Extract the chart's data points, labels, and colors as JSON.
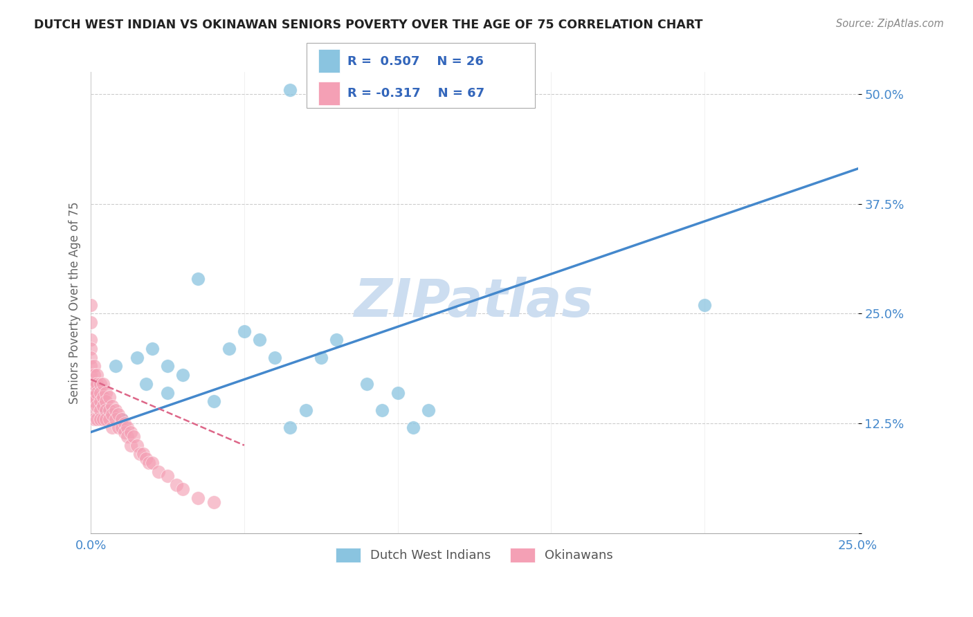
{
  "title": "DUTCH WEST INDIAN VS OKINAWAN SENIORS POVERTY OVER THE AGE OF 75 CORRELATION CHART",
  "source": "Source: ZipAtlas.com",
  "ylabel": "Seniors Poverty Over the Age of 75",
  "xlim": [
    0.0,
    0.25
  ],
  "ylim": [
    0.0,
    0.525
  ],
  "xticks": [
    0.0,
    0.05,
    0.1,
    0.15,
    0.2,
    0.25
  ],
  "yticks": [
    0.0,
    0.125,
    0.25,
    0.375,
    0.5
  ],
  "ytick_labels": [
    "",
    "12.5%",
    "25.0%",
    "37.5%",
    "50.0%"
  ],
  "background_color": "#ffffff",
  "grid_color": "#cccccc",
  "blue_color": "#8ac4e0",
  "pink_color": "#f4a0b5",
  "blue_line_color": "#4488cc",
  "pink_line_color": "#dd6688",
  "watermark": "ZIPatlas",
  "watermark_color": "#ccddf0",
  "legend_r_blue": "R =  0.507",
  "legend_n_blue": "N = 26",
  "legend_r_pink": "R = -0.317",
  "legend_n_pink": "N = 67",
  "legend_label_blue": "Dutch West Indians",
  "legend_label_pink": "Okinawans",
  "blue_x": [
    0.005,
    0.008,
    0.01,
    0.015,
    0.018,
    0.02,
    0.025,
    0.025,
    0.03,
    0.035,
    0.04,
    0.045,
    0.05,
    0.055,
    0.06,
    0.065,
    0.07,
    0.075,
    0.08,
    0.09,
    0.095,
    0.1,
    0.105,
    0.11,
    0.2,
    0.065
  ],
  "blue_y": [
    0.14,
    0.19,
    0.13,
    0.2,
    0.17,
    0.21,
    0.16,
    0.19,
    0.18,
    0.29,
    0.15,
    0.21,
    0.23,
    0.22,
    0.2,
    0.12,
    0.14,
    0.2,
    0.22,
    0.17,
    0.14,
    0.16,
    0.12,
    0.14,
    0.26,
    0.505
  ],
  "pink_x": [
    0.0,
    0.0,
    0.0,
    0.0,
    0.0,
    0.0,
    0.0,
    0.0,
    0.0,
    0.0,
    0.0,
    0.0,
    0.001,
    0.001,
    0.001,
    0.001,
    0.001,
    0.001,
    0.002,
    0.002,
    0.002,
    0.002,
    0.002,
    0.003,
    0.003,
    0.003,
    0.003,
    0.003,
    0.004,
    0.004,
    0.004,
    0.004,
    0.005,
    0.005,
    0.005,
    0.005,
    0.006,
    0.006,
    0.006,
    0.007,
    0.007,
    0.007,
    0.008,
    0.008,
    0.009,
    0.009,
    0.01,
    0.01,
    0.011,
    0.011,
    0.012,
    0.012,
    0.013,
    0.013,
    0.014,
    0.015,
    0.016,
    0.017,
    0.018,
    0.019,
    0.02,
    0.022,
    0.025,
    0.028,
    0.03,
    0.035,
    0.04
  ],
  "pink_y": [
    0.26,
    0.24,
    0.22,
    0.21,
    0.2,
    0.19,
    0.18,
    0.17,
    0.165,
    0.16,
    0.155,
    0.14,
    0.19,
    0.18,
    0.17,
    0.155,
    0.15,
    0.13,
    0.18,
    0.17,
    0.16,
    0.145,
    0.13,
    0.17,
    0.16,
    0.15,
    0.14,
    0.13,
    0.17,
    0.155,
    0.145,
    0.13,
    0.16,
    0.15,
    0.14,
    0.13,
    0.155,
    0.14,
    0.13,
    0.145,
    0.135,
    0.12,
    0.14,
    0.13,
    0.135,
    0.12,
    0.13,
    0.12,
    0.125,
    0.115,
    0.12,
    0.11,
    0.115,
    0.1,
    0.11,
    0.1,
    0.09,
    0.09,
    0.085,
    0.08,
    0.08,
    0.07,
    0.065,
    0.055,
    0.05,
    0.04,
    0.035
  ],
  "blue_trend_x": [
    0.0,
    0.25
  ],
  "blue_trend_y": [
    0.115,
    0.415
  ],
  "pink_trend_x": [
    0.0,
    0.05
  ],
  "pink_trend_y": [
    0.175,
    0.1
  ]
}
